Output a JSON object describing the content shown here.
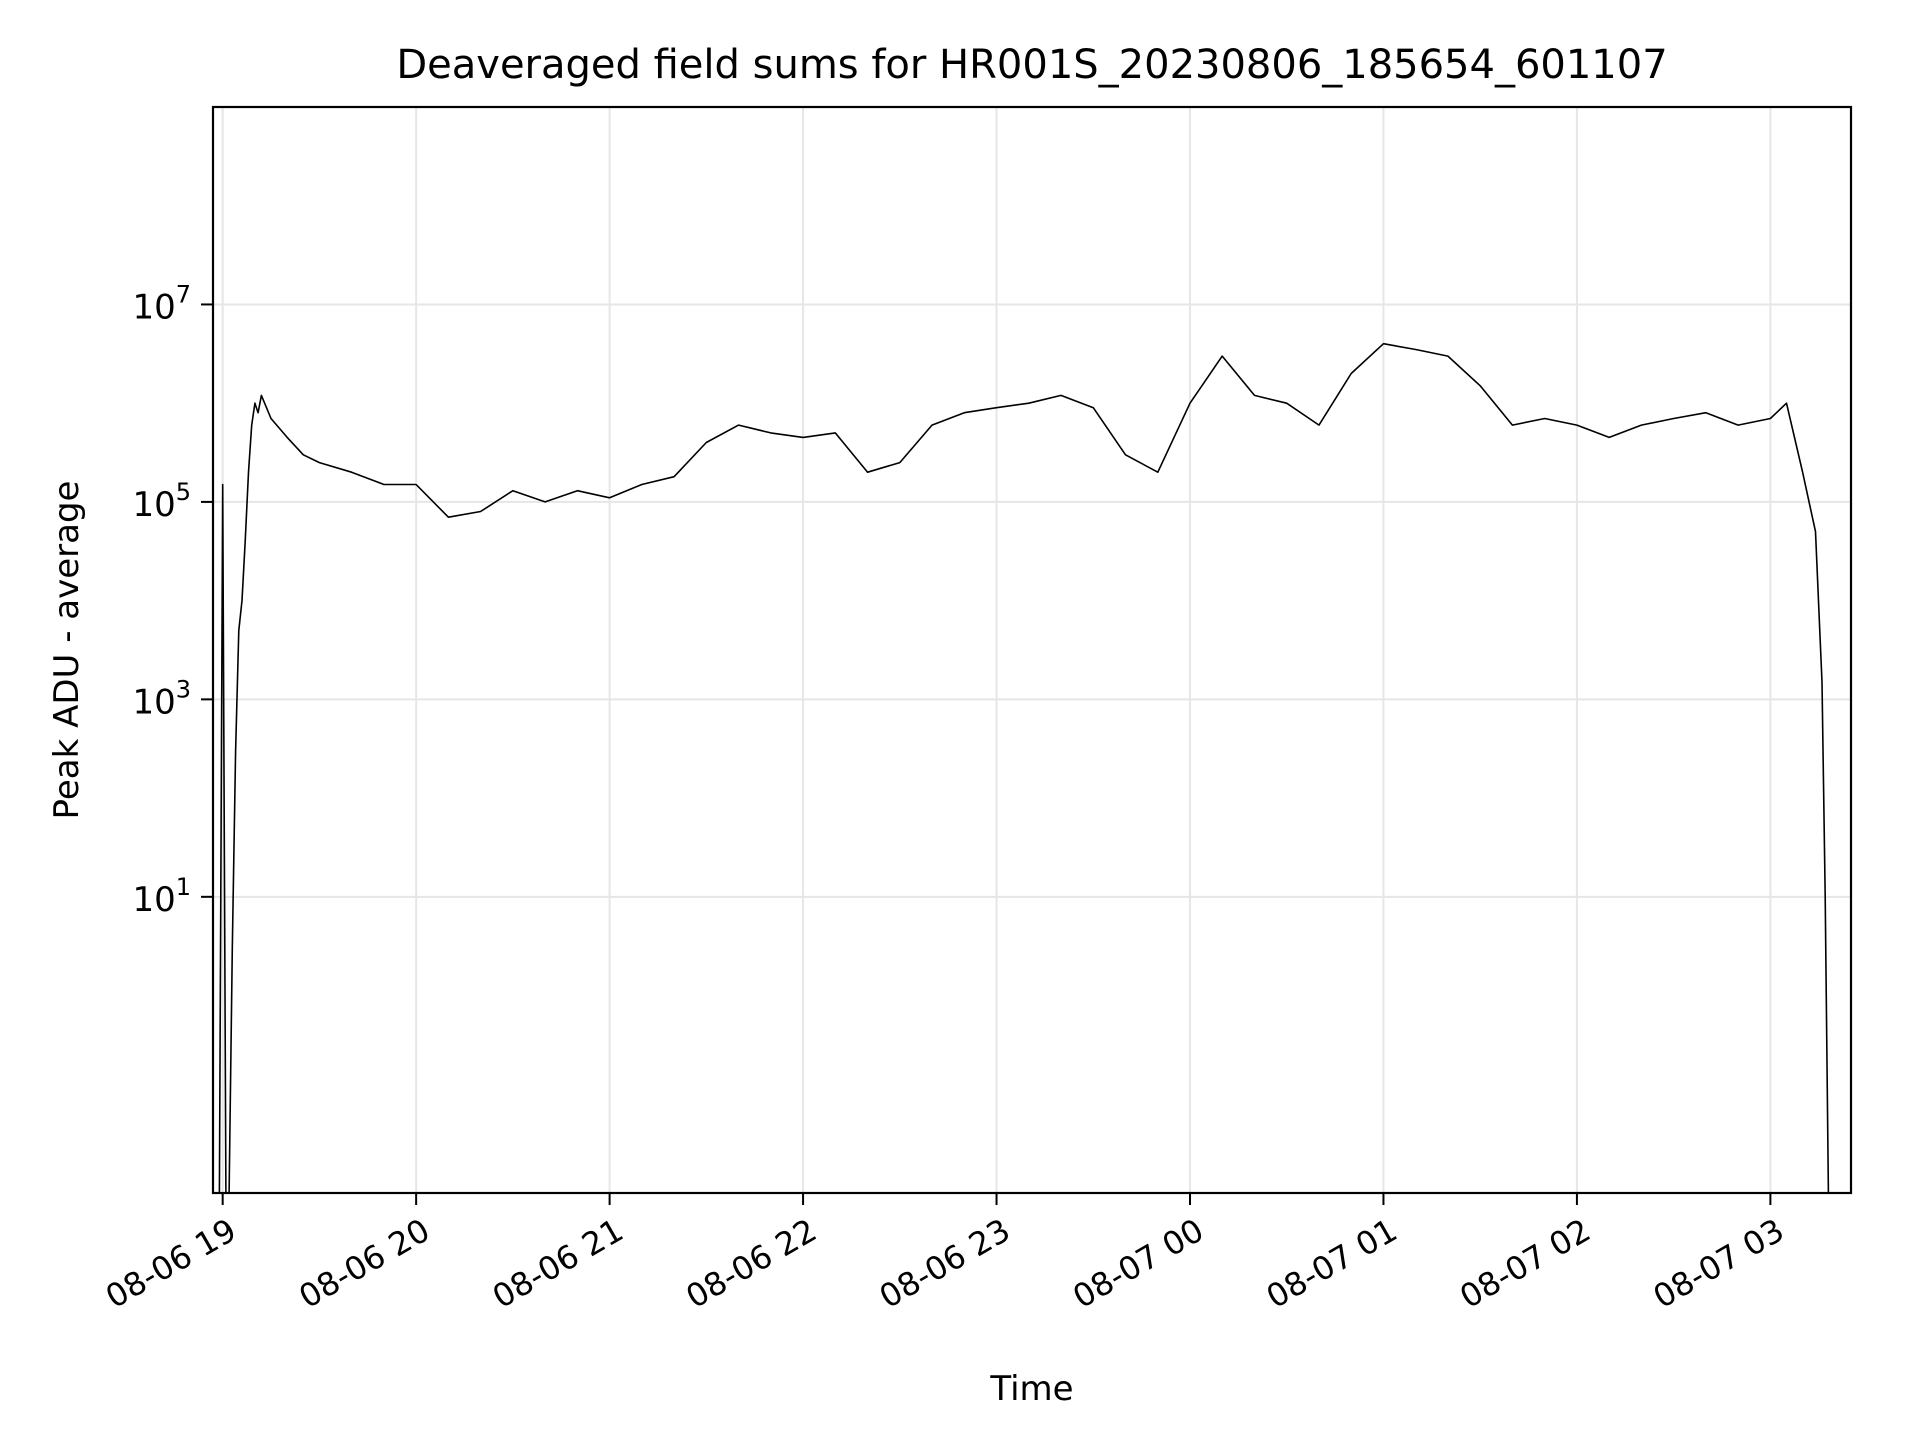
{
  "chart_data": {
    "type": "line",
    "title": "Deaveraged field sums for HR001S_20230806_185654_601107",
    "xlabel": "Time",
    "ylabel": "Peak ADU - average",
    "yscale": "log",
    "ylim": [
      0.01,
      1000000000
    ],
    "xlim": [
      "2023-08-06 18:57",
      "2023-08-07 03:25"
    ],
    "grid": true,
    "line_color": "#000000",
    "grid_color": "#e6e6e6",
    "x_ticks": [
      {
        "label": "08-06 19",
        "t": "2023-08-06 19:00"
      },
      {
        "label": "08-06 20",
        "t": "2023-08-06 20:00"
      },
      {
        "label": "08-06 21",
        "t": "2023-08-06 21:00"
      },
      {
        "label": "08-06 22",
        "t": "2023-08-06 22:00"
      },
      {
        "label": "08-06 23",
        "t": "2023-08-06 23:00"
      },
      {
        "label": "08-07 00",
        "t": "2023-08-07 00:00"
      },
      {
        "label": "08-07 01",
        "t": "2023-08-07 01:00"
      },
      {
        "label": "08-07 02",
        "t": "2023-08-07 02:00"
      },
      {
        "label": "08-07 03",
        "t": "2023-08-07 03:00"
      }
    ],
    "y_ticks": [
      {
        "base": "10",
        "exp": "1",
        "value": 10
      },
      {
        "base": "10",
        "exp": "3",
        "value": 1000
      },
      {
        "base": "10",
        "exp": "5",
        "value": 100000
      },
      {
        "base": "10",
        "exp": "7",
        "value": 10000000
      }
    ],
    "series": [
      {
        "x": [
          "2023-08-06 18:59",
          "2023-08-06 19:00",
          "2023-08-06 19:01",
          "2023-08-06 19:02",
          "2023-08-06 19:03",
          "2023-08-06 19:04",
          "2023-08-06 19:05",
          "2023-08-06 19:06",
          "2023-08-06 19:07",
          "2023-08-06 19:08",
          "2023-08-06 19:09",
          "2023-08-06 19:10",
          "2023-08-06 19:11",
          "2023-08-06 19:12",
          "2023-08-06 19:15",
          "2023-08-06 19:20",
          "2023-08-06 19:25",
          "2023-08-06 19:30",
          "2023-08-06 19:40",
          "2023-08-06 19:50",
          "2023-08-06 20:00",
          "2023-08-06 20:10",
          "2023-08-06 20:20",
          "2023-08-06 20:30",
          "2023-08-06 20:40",
          "2023-08-06 20:50",
          "2023-08-06 21:00",
          "2023-08-06 21:10",
          "2023-08-06 21:20",
          "2023-08-06 21:30",
          "2023-08-06 21:40",
          "2023-08-06 21:50",
          "2023-08-06 22:00",
          "2023-08-06 22:10",
          "2023-08-06 22:20",
          "2023-08-06 22:30",
          "2023-08-06 22:40",
          "2023-08-06 22:50",
          "2023-08-06 23:00",
          "2023-08-06 23:10",
          "2023-08-06 23:20",
          "2023-08-06 23:30",
          "2023-08-06 23:40",
          "2023-08-06 23:50",
          "2023-08-07 00:00",
          "2023-08-07 00:10",
          "2023-08-07 00:20",
          "2023-08-07 00:30",
          "2023-08-07 00:40",
          "2023-08-07 00:50",
          "2023-08-07 01:00",
          "2023-08-07 01:10",
          "2023-08-07 01:20",
          "2023-08-07 01:30",
          "2023-08-07 01:40",
          "2023-08-07 01:50",
          "2023-08-07 02:00",
          "2023-08-07 02:10",
          "2023-08-07 02:20",
          "2023-08-07 02:30",
          "2023-08-07 02:40",
          "2023-08-07 02:50",
          "2023-08-07 03:00",
          "2023-08-07 03:05",
          "2023-08-07 03:10",
          "2023-08-07 03:14",
          "2023-08-07 03:16",
          "2023-08-07 03:17",
          "2023-08-07 03:18"
        ],
        "y": [
          0.01,
          150000,
          0.01,
          0.01,
          3,
          300,
          5000,
          10000,
          40000,
          200000,
          600000,
          1000000,
          800000,
          1200000,
          700000,
          450000,
          300000,
          250000,
          200000,
          150000,
          150000,
          70000,
          80000,
          130000,
          100000,
          130000,
          110000,
          150000,
          180000,
          400000,
          600000,
          500000,
          450000,
          500000,
          200000,
          250000,
          600000,
          800000,
          900000,
          1000000,
          1200000,
          900000,
          300000,
          200000,
          1000000,
          3000000,
          1200000,
          1000000,
          600000,
          2000000,
          4000000,
          3500000,
          3000000,
          1500000,
          600000,
          700000,
          600000,
          450000,
          600000,
          700000,
          800000,
          600000,
          700000,
          1000000,
          200000,
          50000,
          1500,
          10,
          0.01
        ]
      }
    ]
  }
}
